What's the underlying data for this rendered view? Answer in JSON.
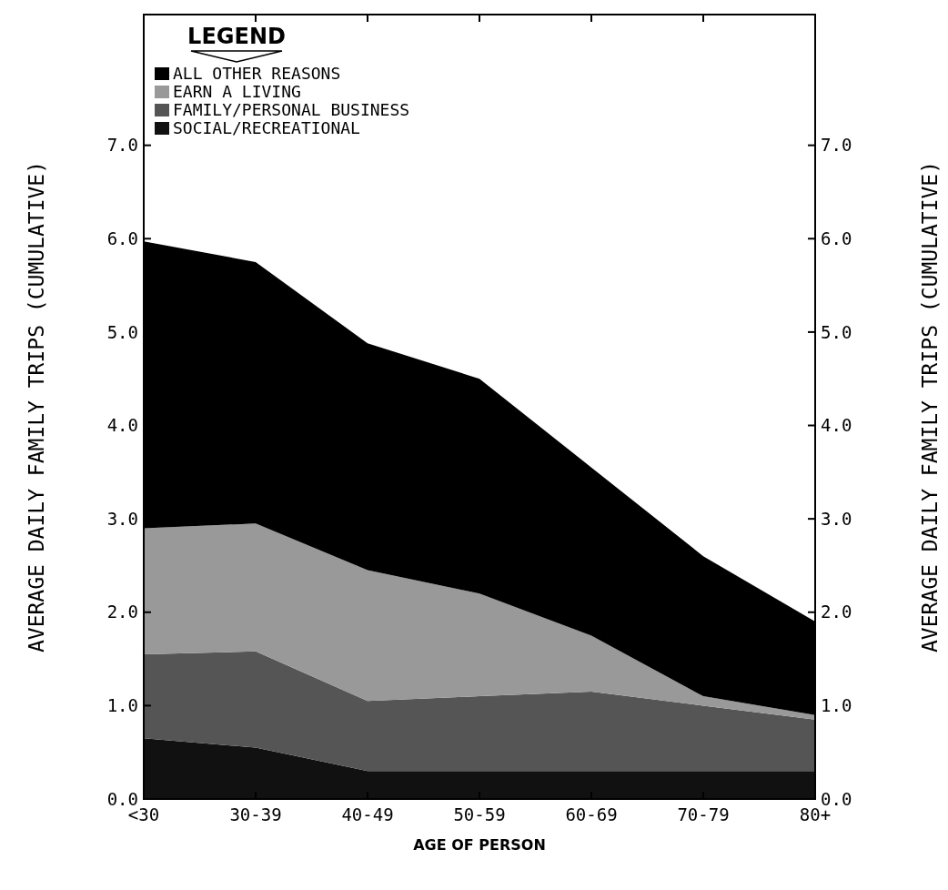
{
  "chart_data": {
    "type": "area",
    "stacked": true,
    "xlabel": "AGE OF PERSON",
    "ylabel": "AVERAGE DAILY FAMILY TRIPS (CUMULATIVE)",
    "y2label": "AVERAGE DAILY FAMILY TRIPS (CUMULATIVE)",
    "legend_title": "LEGEND",
    "legend": "top left",
    "grid": false,
    "categories": [
      "<30",
      "30-39",
      "40-49",
      "50-59",
      "60-69",
      "70-79",
      "80+"
    ],
    "series": [
      {
        "name": "SOCIAL/RECREATIONAL",
        "color": "#111111",
        "values": [
          0.65,
          0.55,
          0.3,
          0.3,
          0.3,
          0.3,
          0.3
        ]
      },
      {
        "name": "FAMILY/PERSONAL BUSINESS",
        "color": "#555555",
        "values": [
          0.9,
          1.03,
          0.75,
          0.8,
          0.85,
          0.7,
          0.55
        ]
      },
      {
        "name": "EARN A LIVING",
        "color": "#999999",
        "values": [
          1.35,
          1.37,
          1.4,
          1.1,
          0.6,
          0.1,
          0.05
        ]
      },
      {
        "name": "ALL OTHER REASONS",
        "color": "#000000",
        "values": [
          3.07,
          2.8,
          2.43,
          2.3,
          1.8,
          1.5,
          1.0
        ]
      }
    ],
    "ylim": [
      0,
      8.4
    ],
    "yticks": [
      {
        "value": 0,
        "label": "0.0"
      },
      {
        "value": 1,
        "label": "1.0"
      },
      {
        "value": 2,
        "label": "2.0"
      },
      {
        "value": 3,
        "label": "3.0"
      },
      {
        "value": 4,
        "label": "4.0"
      },
      {
        "value": 5,
        "label": "5.0"
      },
      {
        "value": 6,
        "label": "6.0"
      },
      {
        "value": 7,
        "label": "7.0"
      }
    ],
    "y2lim": [
      0,
      8.4
    ],
    "y2ticks": [
      {
        "value": 0,
        "label": "0.0"
      },
      {
        "value": 1,
        "label": "1.0"
      },
      {
        "value": 2,
        "label": "2.0"
      },
      {
        "value": 3,
        "label": "3.0"
      },
      {
        "value": 4,
        "label": "4.0"
      },
      {
        "value": 5,
        "label": "5.0"
      },
      {
        "value": 6,
        "label": "6.0"
      },
      {
        "value": 7,
        "label": "7.0"
      }
    ]
  }
}
